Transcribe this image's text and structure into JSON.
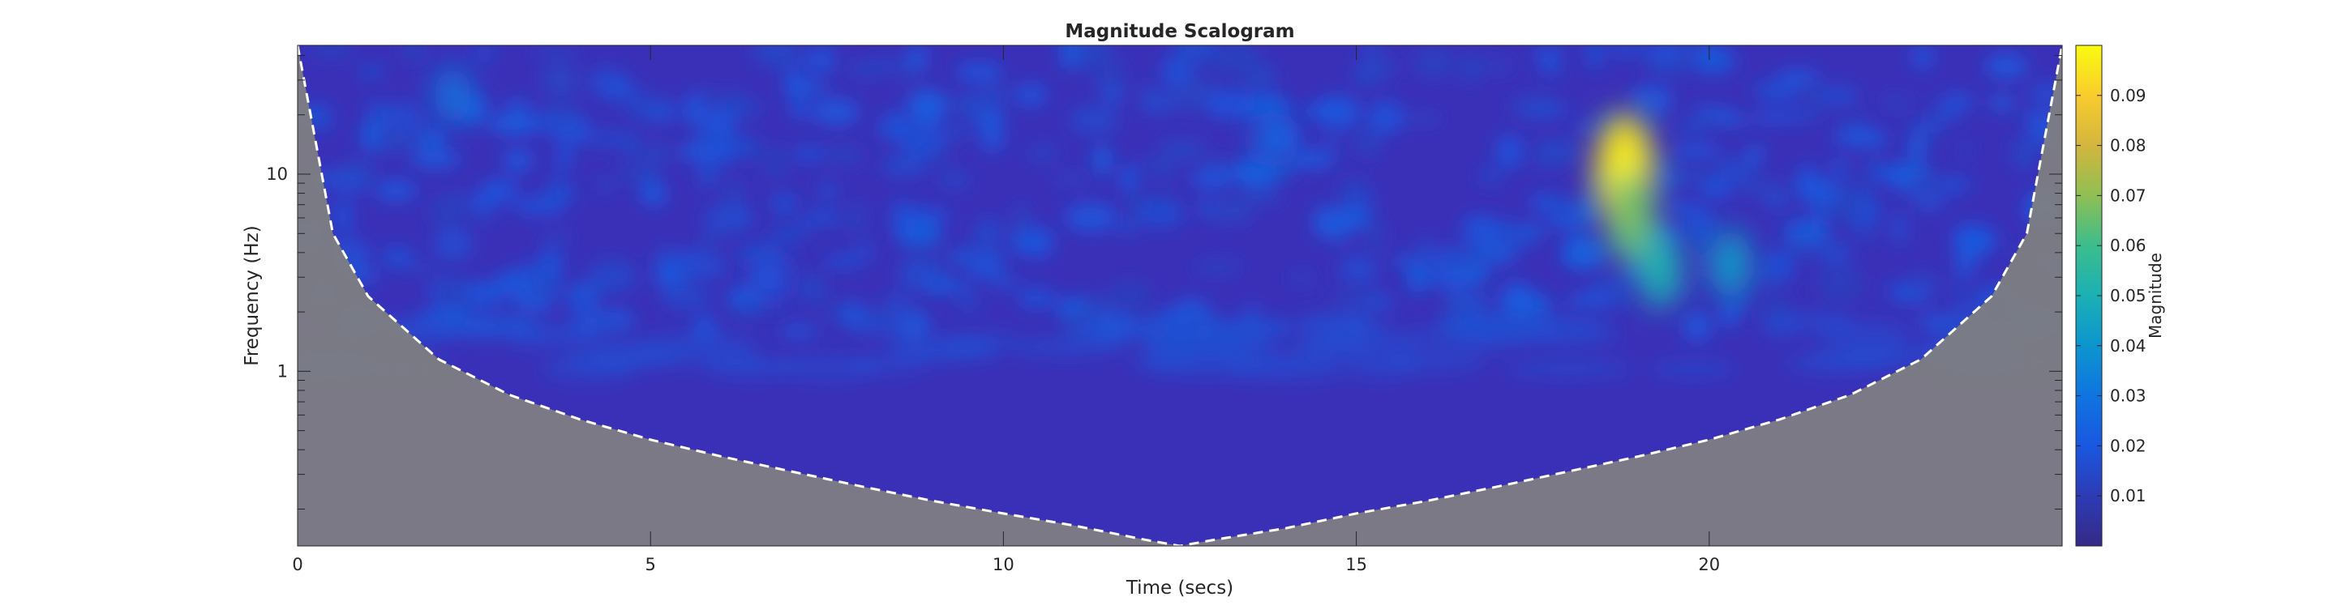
{
  "chart_data": {
    "type": "heatmap",
    "title": "Magnitude Scalogram",
    "xlabel": "Time (secs)",
    "ylabel": "Frequency (Hz)",
    "colorbar_label": "Magnitude",
    "x_scale": "linear",
    "y_scale": "log",
    "xlim": [
      0,
      25
    ],
    "ylim": [
      0.13,
      45
    ],
    "x_ticks": [
      0,
      5,
      10,
      15,
      20
    ],
    "x_tick_labels": [
      "0",
      "5",
      "10",
      "15",
      "20"
    ],
    "y_ticks": [
      1,
      10
    ],
    "y_tick_labels": [
      "1",
      "10"
    ],
    "clim": [
      0,
      0.1
    ],
    "colorbar_ticks": [
      0.01,
      0.02,
      0.03,
      0.04,
      0.05,
      0.06,
      0.07,
      0.08,
      0.09
    ],
    "colorbar_tick_labels": [
      "0.01",
      "0.02",
      "0.03",
      "0.04",
      "0.05",
      "0.06",
      "0.07",
      "0.08",
      "0.09"
    ],
    "colormap": "parula",
    "cone_of_influence": {
      "style": "dashed white line, gray shaded region outside",
      "time": [
        0,
        0.5,
        1,
        2,
        3,
        4,
        5,
        6,
        7,
        8,
        9,
        10,
        11,
        12,
        12.5,
        13,
        14,
        15,
        16,
        17,
        18,
        19,
        20,
        21,
        22,
        23,
        24,
        24.5,
        25
      ],
      "frequency": [
        45,
        5.0,
        2.4,
        1.15,
        0.76,
        0.57,
        0.45,
        0.37,
        0.31,
        0.26,
        0.22,
        0.19,
        0.165,
        0.14,
        0.13,
        0.14,
        0.16,
        0.19,
        0.22,
        0.26,
        0.31,
        0.37,
        0.45,
        0.57,
        0.76,
        1.15,
        2.4,
        5.0,
        45
      ]
    },
    "features": [
      {
        "time": 18.8,
        "frequency": 10,
        "magnitude": 0.095
      },
      {
        "time": 18.9,
        "frequency": 6,
        "magnitude": 0.065
      },
      {
        "time": 19.3,
        "frequency": 3.3,
        "magnitude": 0.05
      },
      {
        "time": 20.3,
        "frequency": 3.5,
        "magnitude": 0.042
      },
      {
        "time": 6.7,
        "frequency": 3.0,
        "magnitude": 0.02
      },
      {
        "time": 2.2,
        "frequency": 25,
        "magnitude": 0.03
      },
      {
        "time": 13.8,
        "frequency": 15,
        "magnitude": 0.025
      }
    ]
  }
}
